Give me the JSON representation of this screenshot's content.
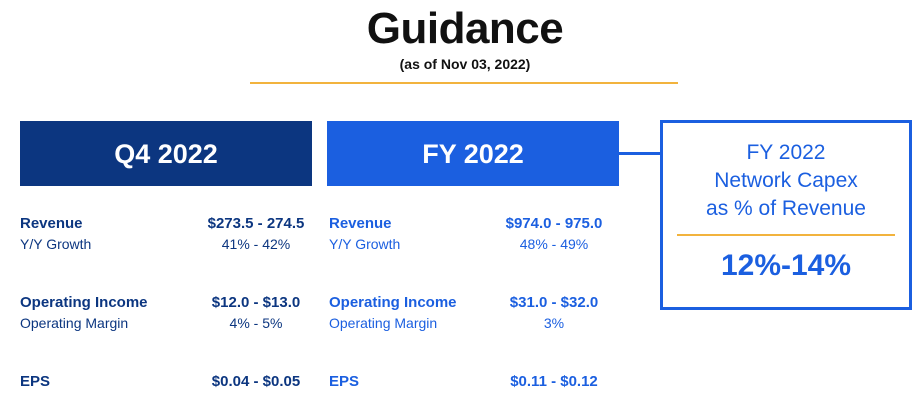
{
  "header": {
    "title": "Guidance",
    "subtitle": "(as of Nov 03, 2022)"
  },
  "q4": {
    "title": "Q4 2022",
    "revenue": {
      "label": "Revenue",
      "value": "$273.5 - 274.5",
      "sub_label": "Y/Y Growth",
      "sub_value": "41% - 42%"
    },
    "operating_income": {
      "label": "Operating Income",
      "value": "$12.0 - $13.0",
      "sub_label": "Operating Margin",
      "sub_value": "4% - 5%"
    },
    "eps": {
      "label": "EPS",
      "value": "$0.04 - $0.05"
    }
  },
  "fy": {
    "title": "FY 2022",
    "revenue": {
      "label": "Revenue",
      "value": "$974.0 - 975.0",
      "sub_label": "Y/Y Growth",
      "sub_value": "48% - 49%"
    },
    "operating_income": {
      "label": "Operating Income",
      "value": "$31.0 - $32.0",
      "sub_label": "Operating Margin",
      "sub_value": "3%"
    },
    "eps": {
      "label": "EPS",
      "value": "$0.11 - $0.12"
    }
  },
  "capex": {
    "title_lines": [
      "FY 2022",
      "Network Capex",
      "as % of Revenue"
    ],
    "value": "12%-14%"
  },
  "colors": {
    "q4_navy": "#0c3680",
    "fy_blue": "#1b5fe0",
    "accent_gold": "#f2b33d"
  }
}
